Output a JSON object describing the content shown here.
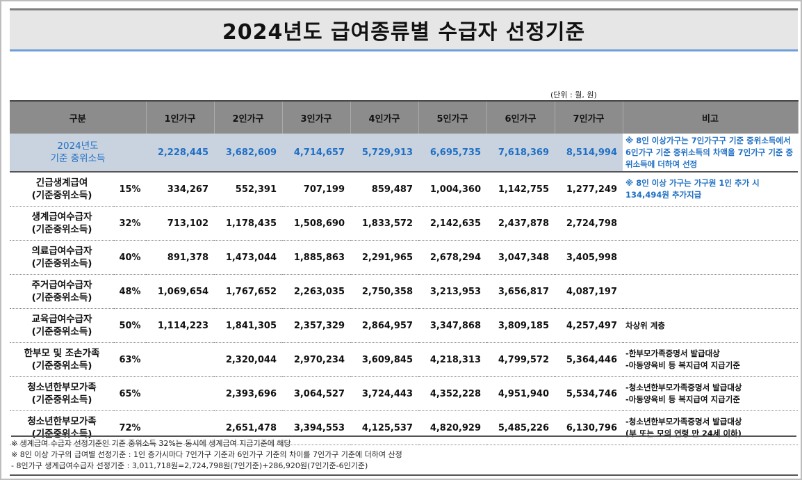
{
  "title": "2024년도 급여종류별 수급자 선정기준",
  "unit": "(단위 : 월, 원)",
  "headers": [
    "구분",
    "1인가구",
    "2인가구",
    "3인가구",
    "4인가구",
    "5인가구",
    "6인가구",
    "7인가구",
    "비고"
  ],
  "median": {
    "label1": "2024년도",
    "label2": "기준 중위소득",
    "values": [
      "2,228,445",
      "3,682,609",
      "4,714,657",
      "5,729,913",
      "6,695,735",
      "7,618,369",
      "8,514,994"
    ],
    "note": "※ 8인 이상가구는 7인가구구 기준 중위소득에서 6인가구 기준 중위소득의 차액을 7인가구 기준 중위소득에 더하여 선정"
  },
  "rows": [
    {
      "name1": "긴급생계급여",
      "name2": "(기준중위소득)",
      "pct": "15%",
      "values": [
        "334,267",
        "552,391",
        "707,199",
        "859,487",
        "1,004,360",
        "1,142,755",
        "1,277,249"
      ],
      "note": "※ 8인 이상 가구는 가구원 1인 추가 시 134,494원 추가지급"
    },
    {
      "name1": "생계급여수급자",
      "name2": "(기준중위소득)",
      "pct": "32%",
      "values": [
        "713,102",
        "1,178,435",
        "1,508,690",
        "1,833,572",
        "2,142,635",
        "2,437,878",
        "2,724,798"
      ],
      "note": ""
    },
    {
      "name1": "의료급여수급자",
      "name2": "(기준중위소득)",
      "pct": "40%",
      "values": [
        "891,378",
        "1,473,044",
        "1,885,863",
        "2,291,965",
        "2,678,294",
        "3,047,348",
        "3,405,998"
      ],
      "note": ""
    },
    {
      "name1": "주거급여수급자",
      "name2": "(기준중위소득)",
      "pct": "48%",
      "values": [
        "1,069,654",
        "1,767,652",
        "2,263,035",
        "2,750,358",
        "3,213,953",
        "3,656,817",
        "4,087,197"
      ],
      "note": ""
    },
    {
      "name1": "교육급여수급자",
      "name2": "(기준중위소득)",
      "pct": "50%",
      "values": [
        "1,114,223",
        "1,841,305",
        "2,357,329",
        "2,864,957",
        "3,347,868",
        "3,809,185",
        "4,257,497"
      ],
      "note": "차상위 계층"
    },
    {
      "name1": "한부모 및 조손가족",
      "name2": "(기준중위소득)",
      "pct": "63%",
      "values": [
        "",
        "2,320,044",
        "2,970,234",
        "3,609,845",
        "4,218,313",
        "4,799,572",
        "5,364,446"
      ],
      "note": "-한부모가족증명서 발급대상\n-아동양육비 등 복지급여 지급기준"
    },
    {
      "name1": "청소년한부모가족",
      "name2": "(기준중위소득)",
      "pct": "65%",
      "values": [
        "",
        "2,393,696",
        "3,064,527",
        "3,724,443",
        "4,352,228",
        "4,951,940",
        "5,534,746"
      ],
      "note": "-청소년한부모가족증명서 발급대상\n-아동양육비 등 복지급여 지급기준"
    },
    {
      "name1": "청소년한부모가족",
      "name2": "(기준중위소득)",
      "pct": "72%",
      "values": [
        "",
        "2,651,478",
        "3,394,553",
        "4,125,537",
        "4,820,929",
        "5,485,226",
        "6,130,796"
      ],
      "note": "-청소년한부모가족증명서 발급대상\n(부 또는 모의 연령 만 24세 이하)"
    }
  ],
  "footnotes": [
    "※ 생계급여 수급자 선정기준인 기준 중위소득 32%는 동시에 생계급여 지급기준에 해당",
    "※ 8인 이상 가구의 급여별 선정기준 : 1인 증가시마다 7인가구 기준과 6인가구 기준의 차이를 7인가구 기준에 더하여 산정",
    "- 8인가구 생계급여수급자 선정기준 : 3,011,718원=2,724,798원(7인기준)+286,920원(7인기준-6인기준)"
  ]
}
